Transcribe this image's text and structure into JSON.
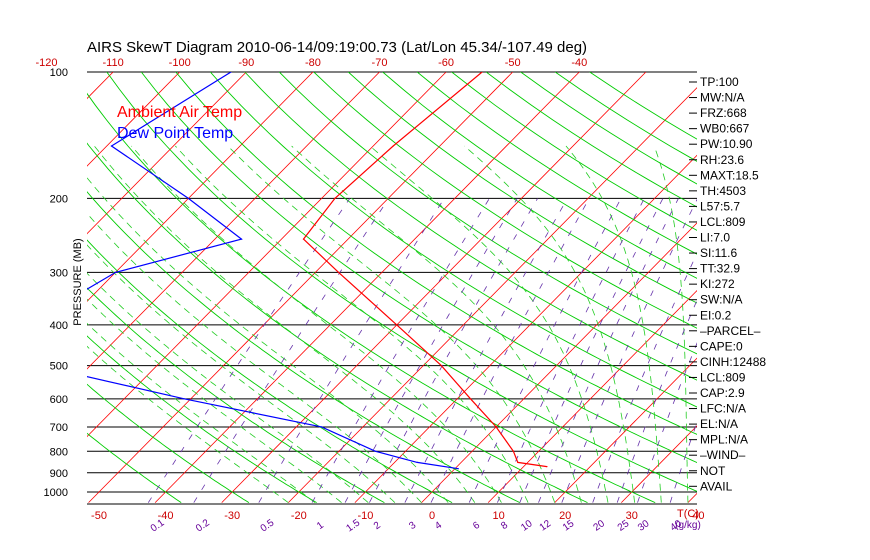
{
  "chart_data": {
    "type": "line",
    "title": "AIRS SkewT Diagram 2010-06-14/09:19:00.73 (Lat/Lon 45.34/-107.49 deg)",
    "ylabel": "PRESSURE (MB)",
    "xlabel_bottom_right": "T(C)",
    "mixing_ratio_unit_label": "(g/kg)",
    "y_scale": "log",
    "ylim": [
      1050,
      100
    ],
    "pressure_ticks": [
      100,
      200,
      300,
      400,
      500,
      600,
      700,
      800,
      900,
      1000
    ],
    "bottom_temp_ticks": [
      -50,
      -40,
      -30,
      -20,
      -10,
      0,
      10,
      20,
      30,
      40
    ],
    "top_temp_ticks": [
      -120,
      -110,
      -100,
      -90,
      -80,
      -70,
      -60,
      -50,
      -40
    ],
    "mixing_ratio_labels": [
      "0.1",
      "0.2",
      "0.5",
      "1",
      "1.5",
      "2",
      "3",
      "4",
      "6",
      "8",
      "10",
      "12",
      "15",
      "20",
      "25",
      "30",
      "40"
    ],
    "legend": [
      {
        "name": "Ambient Air Temp",
        "color": "#ff0000"
      },
      {
        "name": "Dew Point Temp",
        "color": "#0000ff"
      }
    ],
    "series": [
      {
        "name": "Ambient Air Temp",
        "color": "#ff0000",
        "points": [
          {
            "p": 100,
            "t": -54.6
          },
          {
            "p": 150,
            "t": -57.0
          },
          {
            "p": 200,
            "t": -58.0
          },
          {
            "p": 250,
            "t": -56.7
          },
          {
            "p": 300,
            "t": -46.5
          },
          {
            "p": 400,
            "t": -30.0
          },
          {
            "p": 500,
            "t": -17.3
          },
          {
            "p": 600,
            "t": -8.0
          },
          {
            "p": 700,
            "t": 0.0
          },
          {
            "p": 800,
            "t": 6.2
          },
          {
            "p": 850,
            "t": 8.5
          },
          {
            "p": 870,
            "t": 13.5
          }
        ]
      },
      {
        "name": "Dew Point Temp",
        "color": "#0000ff",
        "points": [
          {
            "p": 100,
            "t": -92.3
          },
          {
            "p": 150,
            "t": -99.3
          },
          {
            "p": 200,
            "t": -80.0
          },
          {
            "p": 250,
            "t": -66.0
          },
          {
            "p": 300,
            "t": -80.0
          },
          {
            "p": 400,
            "t": -85.6
          },
          {
            "p": 500,
            "t": -77.8
          },
          {
            "p": 600,
            "t": -51.0
          },
          {
            "p": 700,
            "t": -26.2
          },
          {
            "p": 800,
            "t": -14.5
          },
          {
            "p": 850,
            "t": -6.6
          },
          {
            "p": 880,
            "t": 0.5
          }
        ]
      }
    ]
  },
  "indices": [
    "TP:100",
    "MW:N/A",
    "FRZ:668",
    "WB0:667",
    "PW:10.90",
    "RH:23.6",
    "MAXT:18.5",
    "TH:4503",
    "L57:5.7",
    "LCL:809",
    "LI:7.0",
    "SI:11.6",
    "TT:32.9",
    "KI:272",
    "SW:N/A",
    "EI:0.2",
    "–PARCEL–",
    "CAPE:0",
    "CINH:12488",
    "LCL:809",
    "CAP:2.9",
    "LFC:N/A",
    "EL:N/A",
    "MPL:N/A",
    "–WIND–",
    "NOT",
    "AVAIL"
  ],
  "colors": {
    "temperature_line": "#ff0000",
    "dewpoint_line": "#0000ff",
    "isotherm": "#ff0000",
    "dry_adiabat": "#00cc00",
    "moist_adiabat": "#22cc22",
    "mixing_ratio": "#6633aa",
    "isobar": "#000000",
    "axis_label_red": "#cc0000",
    "axis_label_purple": "#660099"
  }
}
